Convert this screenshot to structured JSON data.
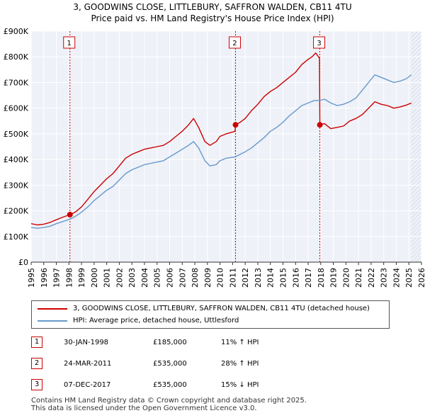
{
  "chart_data": {
    "type": "line",
    "title": "3, GOODWINS CLOSE, LITTLEBURY, SAFFRON WALDEN, CB11 4TU",
    "subtitle": "Price paid vs. HM Land Registry's House Price Index (HPI)",
    "xlabel": "",
    "ylabel": "",
    "xlim": [
      1995,
      2026
    ],
    "ylim": [
      0,
      900000
    ],
    "x_ticks": [
      "1995",
      "1996",
      "1997",
      "1998",
      "1999",
      "2000",
      "2001",
      "2002",
      "2003",
      "2004",
      "2005",
      "2006",
      "2007",
      "2008",
      "2009",
      "2010",
      "2011",
      "2012",
      "2013",
      "2014",
      "2015",
      "2016",
      "2017",
      "2018",
      "2019",
      "2020",
      "2021",
      "2022",
      "2023",
      "2024",
      "2025",
      "2026"
    ],
    "y_ticks": [
      {
        "value": 0,
        "label": "£0"
      },
      {
        "value": 100000,
        "label": "£100K"
      },
      {
        "value": 200000,
        "label": "£200K"
      },
      {
        "value": 300000,
        "label": "£300K"
      },
      {
        "value": 400000,
        "label": "£400K"
      },
      {
        "value": 500000,
        "label": "£500K"
      },
      {
        "value": 600000,
        "label": "£600K"
      },
      {
        "value": 700000,
        "label": "£700K"
      },
      {
        "value": 800000,
        "label": "£800K"
      },
      {
        "value": 900000,
        "label": "£900K"
      }
    ],
    "grid": true,
    "series": [
      {
        "name": "3, GOODWINS CLOSE, LITTLEBURY, SAFFRON WALDEN, CB11 4TU (detached house)",
        "color": "#cc0000",
        "x": [
          1995.0,
          1995.5,
          1996.0,
          1996.5,
          1997.0,
          1997.5,
          1998.08,
          1998.5,
          1999.0,
          1999.5,
          2000.0,
          2000.5,
          2001.0,
          2001.5,
          2002.0,
          2002.5,
          2003.0,
          2003.5,
          2004.0,
          2004.5,
          2005.0,
          2005.5,
          2006.0,
          2006.5,
          2007.0,
          2007.5,
          2007.9,
          2008.3,
          2008.8,
          2009.2,
          2009.7,
          2010.0,
          2010.5,
          2011.2,
          2011.23,
          2011.6,
          2012.0,
          2012.5,
          2013.0,
          2013.5,
          2014.0,
          2014.5,
          2015.0,
          2015.5,
          2016.0,
          2016.5,
          2017.0,
          2017.3,
          2017.6,
          2017.9,
          2017.93,
          2018.3,
          2018.8,
          2019.3,
          2019.8,
          2020.3,
          2020.8,
          2021.3,
          2021.8,
          2022.3,
          2022.8,
          2023.3,
          2023.8,
          2024.3,
          2024.8,
          2025.2
        ],
        "values": [
          150000,
          145000,
          148000,
          155000,
          165000,
          175000,
          185000,
          195000,
          215000,
          245000,
          275000,
          300000,
          325000,
          345000,
          375000,
          405000,
          420000,
          430000,
          440000,
          445000,
          450000,
          455000,
          470000,
          490000,
          510000,
          535000,
          560000,
          525000,
          470000,
          455000,
          470000,
          490000,
          500000,
          510000,
          535000,
          545000,
          560000,
          590000,
          615000,
          645000,
          665000,
          680000,
          700000,
          720000,
          740000,
          770000,
          790000,
          800000,
          815000,
          795000,
          535000,
          540000,
          520000,
          525000,
          530000,
          550000,
          560000,
          575000,
          600000,
          625000,
          615000,
          610000,
          600000,
          605000,
          612000,
          620000
        ]
      },
      {
        "name": "HPI: Average price, detached house, Uttlesford",
        "color": "#6699cc",
        "x": [
          1995.0,
          1995.5,
          1996.0,
          1996.5,
          1997.0,
          1997.5,
          1998.08,
          1998.5,
          1999.0,
          1999.5,
          2000.0,
          2000.5,
          2001.0,
          2001.5,
          2002.0,
          2002.5,
          2003.0,
          2003.5,
          2004.0,
          2004.5,
          2005.0,
          2005.5,
          2006.0,
          2006.5,
          2007.0,
          2007.5,
          2007.9,
          2008.3,
          2008.8,
          2009.2,
          2009.7,
          2010.0,
          2010.5,
          2011.2,
          2011.6,
          2012.0,
          2012.5,
          2013.0,
          2013.5,
          2014.0,
          2014.5,
          2015.0,
          2015.5,
          2016.0,
          2016.5,
          2017.0,
          2017.5,
          2017.93,
          2018.3,
          2018.8,
          2019.3,
          2019.8,
          2020.3,
          2020.8,
          2021.3,
          2021.8,
          2022.3,
          2022.8,
          2023.3,
          2023.8,
          2024.3,
          2024.8,
          2025.2
        ],
        "values": [
          135000,
          132000,
          135000,
          140000,
          150000,
          158000,
          167000,
          178000,
          195000,
          215000,
          240000,
          260000,
          280000,
          295000,
          320000,
          345000,
          360000,
          370000,
          380000,
          385000,
          390000,
          395000,
          410000,
          425000,
          440000,
          455000,
          470000,
          445000,
          395000,
          375000,
          380000,
          395000,
          405000,
          410000,
          420000,
          430000,
          445000,
          465000,
          485000,
          510000,
          525000,
          545000,
          570000,
          590000,
          610000,
          620000,
          630000,
          630000,
          635000,
          620000,
          610000,
          615000,
          625000,
          640000,
          670000,
          700000,
          730000,
          720000,
          710000,
          700000,
          705000,
          715000,
          730000
        ]
      }
    ],
    "sales": [
      {
        "label": "1",
        "x": 1998.08,
        "price": 185000
      },
      {
        "label": "2",
        "x": 2011.23,
        "price": 535000
      },
      {
        "label": "3",
        "x": 2017.93,
        "price": 535000
      }
    ]
  },
  "legend": {
    "property": "3, GOODWINS CLOSE, LITTLEBURY, SAFFRON WALDEN, CB11 4TU (detached house)",
    "hpi": "HPI: Average price, detached house, Uttlesford"
  },
  "sales_table": [
    {
      "num": "1",
      "date": "30-JAN-1998",
      "price": "£185,000",
      "hpi": "11% ↑ HPI"
    },
    {
      "num": "2",
      "date": "24-MAR-2011",
      "price": "£535,000",
      "hpi": "28% ↑ HPI"
    },
    {
      "num": "3",
      "date": "07-DEC-2017",
      "price": "£535,000",
      "hpi": "15% ↓ HPI"
    }
  ],
  "footer": {
    "line1": "Contains HM Land Registry data © Crown copyright and database right 2025.",
    "line2": "This data is licensed under the Open Government Licence v3.0."
  }
}
